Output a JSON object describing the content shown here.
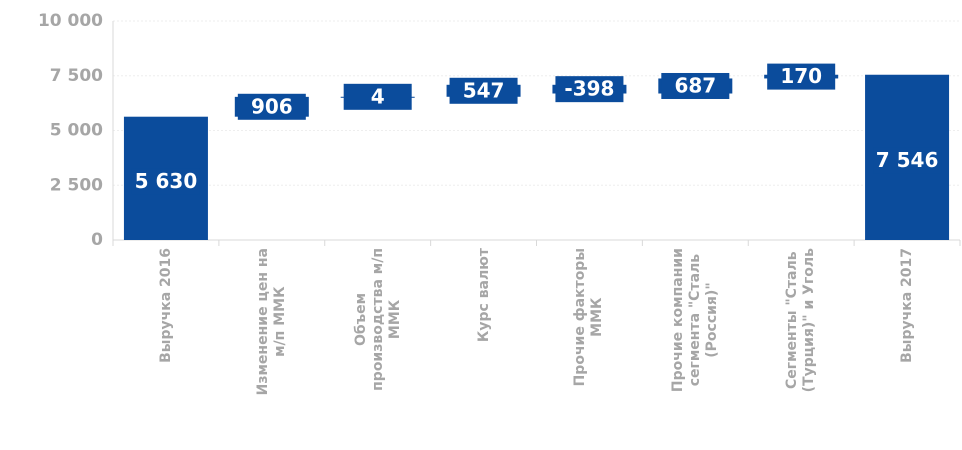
{
  "chart_data": {
    "type": "waterfall",
    "categories": [
      "Выручка 2016",
      "Изменение цен на\nм/п ММК",
      "Объем\nпроизводства м/п\nММК",
      "Курс валют",
      "Прочие факторы\nММК",
      "Прочие компании\nсегмента \"Сталь\n(Россия)\"",
      "Сегменты \"Сталь\n(Турция)\" и Уголь",
      "Выручка 2017"
    ],
    "values": [
      5630,
      906,
      4,
      547,
      -398,
      687,
      170,
      7546
    ],
    "value_labels": [
      "5 630",
      "906",
      "4",
      "547",
      "-398",
      "687",
      "170",
      "7 546"
    ],
    "totals": [
      true,
      false,
      false,
      false,
      false,
      false,
      false,
      true
    ],
    "color": "#0b4c9c",
    "ylim": [
      0,
      10000
    ],
    "yticks": [
      0,
      {
        "value": 2500,
        "label": "2 500"
      },
      {
        "value": 5000,
        "label": "5 000"
      },
      {
        "value": 7500,
        "label": "7 500"
      },
      {
        "value": 10000,
        "label": "10 000"
      }
    ],
    "grid": true
  }
}
